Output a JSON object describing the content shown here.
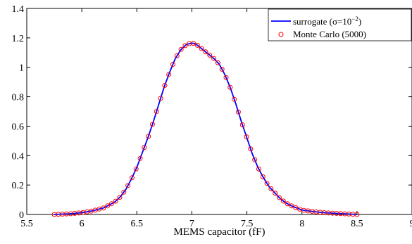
{
  "chart_data": {
    "type": "line",
    "title": "",
    "xlabel": "MEMS capacitor (fF)",
    "ylabel": "",
    "xlim": [
      5.5,
      9
    ],
    "ylim": [
      0,
      1.4
    ],
    "x_ticks": [
      5.5,
      6,
      6.5,
      7,
      7.5,
      8,
      8.5,
      9
    ],
    "x_tick_labels": [
      "5.5",
      "6",
      "6.5",
      "7",
      "7.5",
      "8",
      "8.5",
      "9"
    ],
    "y_ticks": [
      0,
      0.2,
      0.4,
      0.6,
      0.8,
      1,
      1.2,
      1.4
    ],
    "y_tick_labels": [
      "0",
      "0.2",
      "0.4",
      "0.6",
      "0.8",
      "1",
      "1.2",
      "1.4"
    ],
    "grid": false,
    "legend_position": "top-right",
    "series": [
      {
        "name": "surrogate (σ=10−2)",
        "legend_prefix": "surrogate (σ=10",
        "legend_sup": "−2",
        "legend_suffix": ")",
        "style": "line",
        "color": "#0000ff",
        "x": [
          5.75,
          5.9,
          6.0,
          6.1,
          6.2,
          6.3,
          6.35,
          6.4,
          6.45,
          6.5,
          6.55,
          6.6,
          6.65,
          6.7,
          6.75,
          6.8,
          6.85,
          6.9,
          6.95,
          7.0,
          7.03,
          7.05,
          7.1,
          7.15,
          7.2,
          7.25,
          7.3,
          7.35,
          7.4,
          7.45,
          7.5,
          7.55,
          7.6,
          7.65,
          7.7,
          7.75,
          7.8,
          7.85,
          7.9,
          7.95,
          8.0,
          8.1,
          8.2,
          8.3,
          8.4,
          8.5
        ],
        "y": [
          0.0,
          0.005,
          0.012,
          0.025,
          0.045,
          0.085,
          0.12,
          0.17,
          0.24,
          0.32,
          0.42,
          0.52,
          0.63,
          0.75,
          0.87,
          0.97,
          1.06,
          1.12,
          1.155,
          1.165,
          1.16,
          1.15,
          1.12,
          1.09,
          1.06,
          1.02,
          0.95,
          0.86,
          0.75,
          0.63,
          0.52,
          0.41,
          0.32,
          0.25,
          0.19,
          0.15,
          0.11,
          0.08,
          0.06,
          0.045,
          0.03,
          0.02,
          0.012,
          0.008,
          0.004,
          0.0
        ]
      },
      {
        "name": "Monte Carlo (5000)",
        "style": "markers",
        "color": "#ff0000",
        "marker": "circle"
      }
    ]
  }
}
